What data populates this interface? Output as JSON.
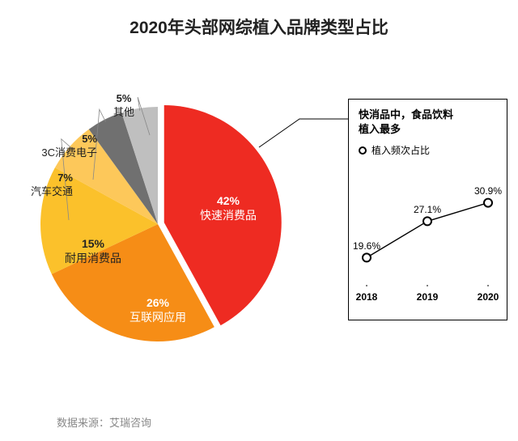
{
  "title": "2020年头部网综植入品牌类型占比",
  "title_fontsize": 21,
  "title_color": "#222222",
  "background_color": "#ffffff",
  "source": "数据来源：艾瑞咨询",
  "pie": {
    "type": "pie",
    "radius": 145,
    "pull_out": 8,
    "slices": [
      {
        "label": "快速消费品",
        "value": 42,
        "pct": "42%",
        "color": "#ee2b22"
      },
      {
        "label": "互联网应用",
        "value": 26,
        "pct": "26%",
        "color": "#f68d16"
      },
      {
        "label": "耐用消费品",
        "value": 15,
        "pct": "15%",
        "color": "#fbc12b"
      },
      {
        "label": "汽车交通",
        "value": 7,
        "pct": "7%",
        "color": "#fdc85a"
      },
      {
        "label": "3C消费电子",
        "value": 5,
        "pct": "5%",
        "color": "#707070"
      },
      {
        "label": "其他",
        "value": 5,
        "pct": "5%",
        "color": "#bfbfbf"
      }
    ]
  },
  "callout": {
    "title_line1": "快消品中，食品饮料",
    "title_line2": "植入最多",
    "legend": "植入频次占比",
    "border_color": "#000000",
    "line": {
      "type": "line",
      "x": [
        "2018",
        "2019",
        "2020"
      ],
      "y": [
        19.6,
        27.1,
        30.9
      ],
      "labels": [
        "19.6%",
        "27.1%",
        "30.9%"
      ],
      "ylim": [
        15,
        35
      ],
      "line_color": "#000000",
      "line_width": 1.4,
      "marker_stroke": "#000000",
      "marker_fill": "#ffffff",
      "marker_r": 5,
      "width": 170,
      "height": 150,
      "tick_fontsize": 12,
      "value_fontsize": 12
    }
  }
}
